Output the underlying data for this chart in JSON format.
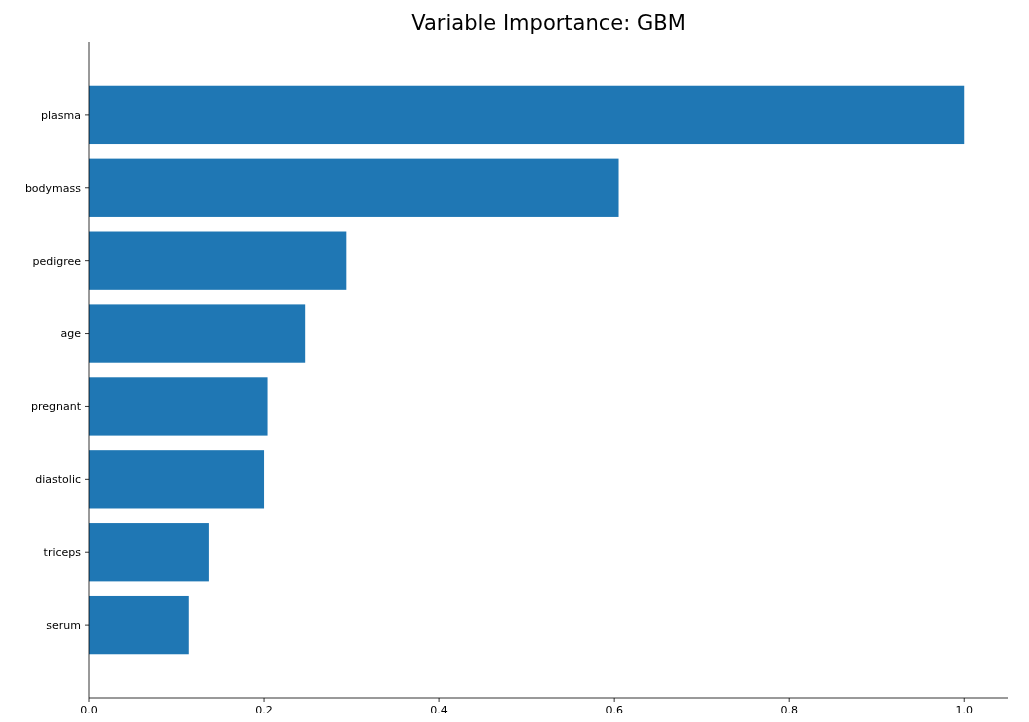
{
  "chart_data": {
    "type": "bar",
    "orientation": "horizontal",
    "title": "Variable Importance: GBM",
    "categories": [
      "plasma",
      "bodymass",
      "pedigree",
      "age",
      "pregnant",
      "diastolic",
      "triceps",
      "serum"
    ],
    "values": [
      1.0,
      0.605,
      0.294,
      0.247,
      0.204,
      0.2,
      0.137,
      0.114
    ],
    "color": "#1f77b4",
    "xlim": [
      0,
      1.05
    ],
    "xticks": [
      {
        "value": 0,
        "label": "0.0"
      },
      0.2,
      0.4,
      0.6,
      0.8,
      {
        "value": 1,
        "label": "1.0"
      }
    ],
    "grid": false
  }
}
